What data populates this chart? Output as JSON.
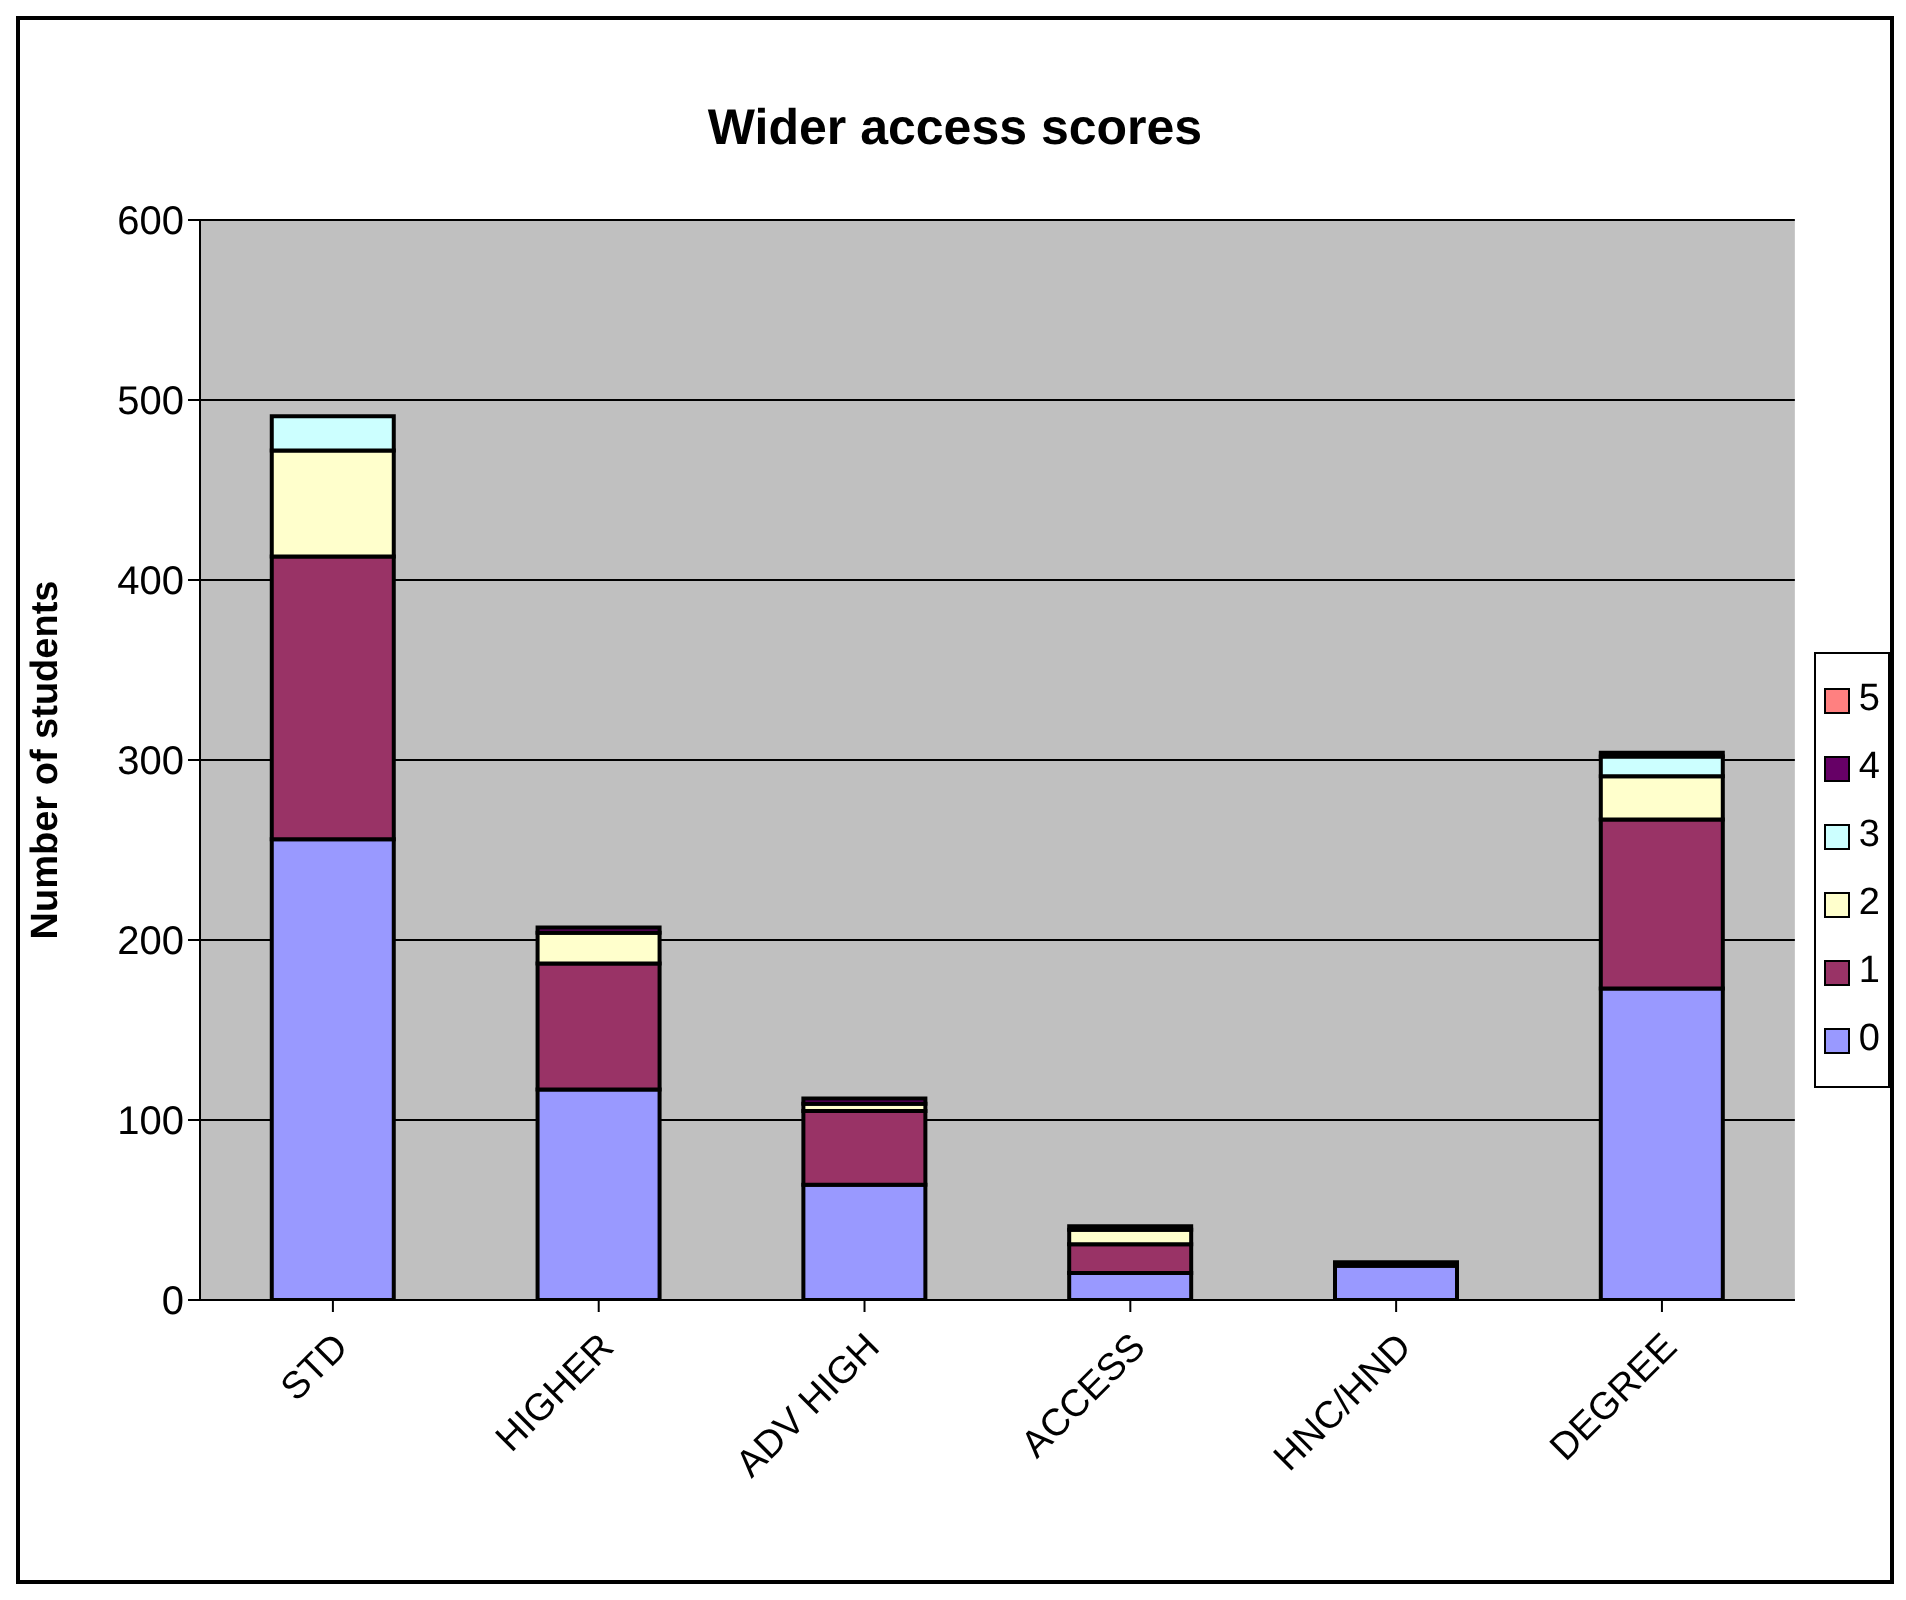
{
  "chart_data": {
    "type": "bar",
    "title": "Wider access scores",
    "ylabel": "Number of students",
    "categories": [
      "STD",
      "HIGHER",
      "ADV HIGH",
      "ACCESS",
      "HNC/HND",
      "DEGREE"
    ],
    "stacked": true,
    "series": [
      {
        "name": "0",
        "color": "#9999ff",
        "values": [
          256,
          117,
          64,
          15,
          19,
          173
        ]
      },
      {
        "name": "1",
        "color": "#993366",
        "values": [
          157,
          70,
          41,
          16,
          0,
          94
        ]
      },
      {
        "name": "2",
        "color": "#ffffcc",
        "values": [
          59,
          17,
          4,
          8,
          0,
          24
        ]
      },
      {
        "name": "3",
        "color": "#ccffff",
        "values": [
          19,
          0,
          0,
          0,
          0,
          11
        ]
      },
      {
        "name": "4",
        "color": "#660066",
        "values": [
          0,
          3,
          3,
          2,
          2,
          2
        ]
      },
      {
        "name": "5",
        "color": "#ff8080",
        "values": [
          0,
          0,
          0,
          0,
          0,
          0
        ]
      }
    ],
    "ylim": [
      0,
      600
    ],
    "yticks": [
      0,
      100,
      200,
      300,
      400,
      500,
      600
    ],
    "grid": "y",
    "legend": "right"
  }
}
